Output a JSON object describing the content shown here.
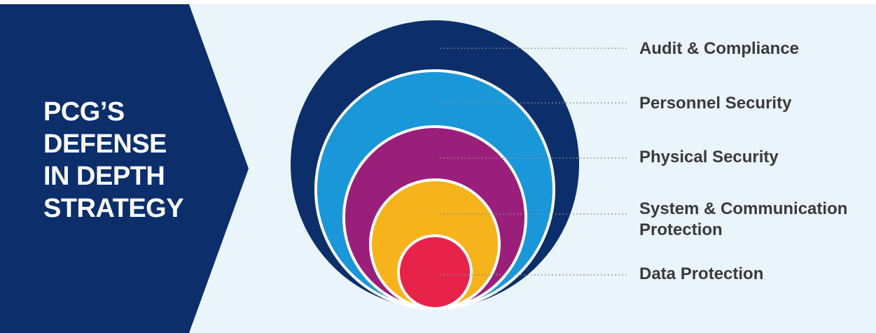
{
  "title_lines": [
    "PCG’S",
    "DEFENSE",
    "IN DEPTH",
    "STRATEGY"
  ],
  "layers": [
    {
      "label_lines": [
        "Audit & Compliance"
      ],
      "color": "#0c2f6b"
    },
    {
      "label_lines": [
        "Personnel Security"
      ],
      "color": "#1a97d8"
    },
    {
      "label_lines": [
        "Physical Security"
      ],
      "color": "#9a1f7b"
    },
    {
      "label_lines": [
        "System & Communication",
        "Protection"
      ],
      "color": "#f6b31c"
    },
    {
      "label_lines": [
        "Data Protection"
      ],
      "color": "#e8234a"
    }
  ],
  "colors": {
    "chevron": "#0c2f6b",
    "background": "#eaf4fb",
    "ring_outline": "#ffffff",
    "leader_line": "#8a8a8a",
    "label_text": "#3a3a3a"
  }
}
